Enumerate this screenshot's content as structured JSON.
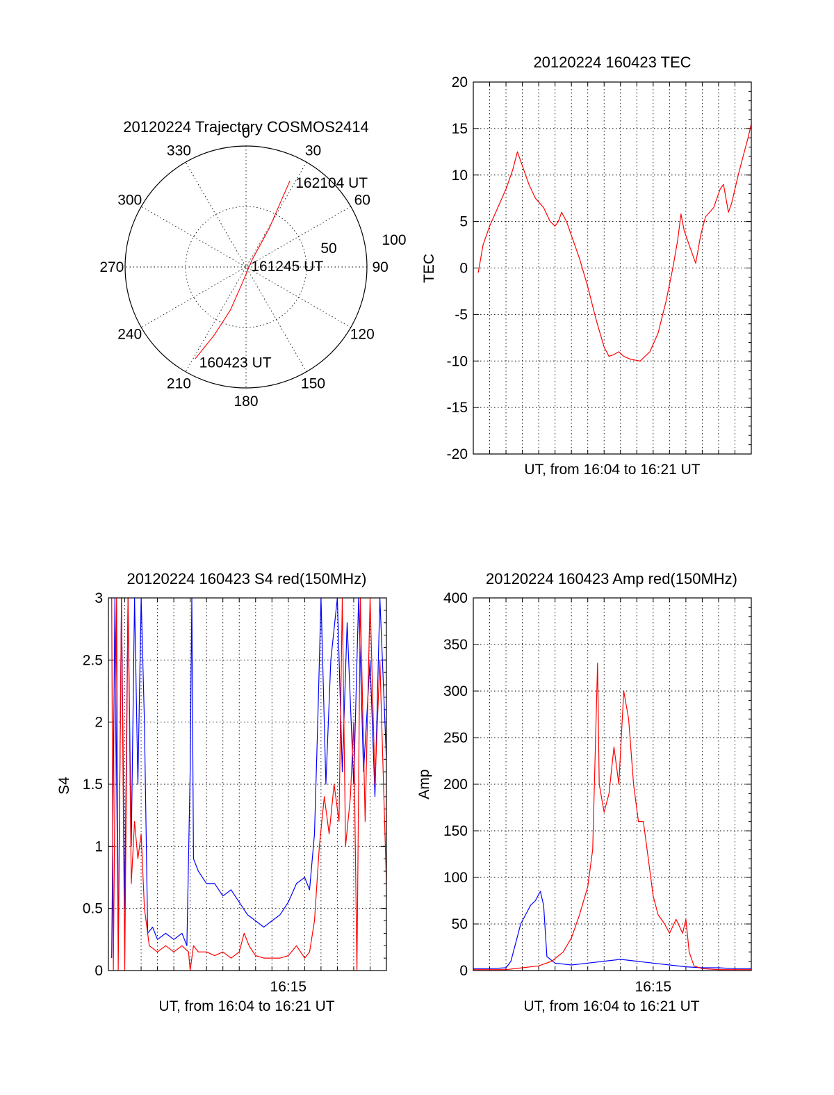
{
  "colors": {
    "red": "#ff0000",
    "blue": "#0000ff",
    "axis": "#000000"
  },
  "chart_data": [
    {
      "id": "trajectory",
      "type": "polar",
      "title": "20120224 Trajectory COSMOS2414",
      "azimuth_labels": [
        "0",
        "30",
        "60",
        "90",
        "120",
        "150",
        "180",
        "210",
        "240",
        "270",
        "300",
        "330"
      ],
      "radial_labels": [
        "50",
        "100"
      ],
      "radial_range": [
        0,
        100
      ],
      "grid": true,
      "series": [
        {
          "color": "red",
          "points": [
            [
              209,
              87
            ],
            [
              205,
              62
            ],
            [
              200,
              38
            ],
            [
              194,
              15
            ],
            [
              40,
              8
            ],
            [
              31,
              37
            ],
            [
              28,
              62
            ],
            [
              27,
              80
            ]
          ]
        }
      ],
      "annotations": [
        {
          "text": "162104 UT",
          "at": [
            27,
            80
          ]
        },
        {
          "text": "161245 UT",
          "at": [
            90,
            3
          ]
        },
        {
          "text": "160423 UT",
          "at": [
            209,
            87
          ]
        }
      ]
    },
    {
      "id": "tec",
      "type": "line",
      "title": "20120224 160423 TEC",
      "xlabel": "UT, from 16:04 to 16:21 UT",
      "ylabel": "TEC",
      "xlim": [
        0,
        17
      ],
      "ylim": [
        -20,
        20
      ],
      "yticks": [
        "-20",
        "-15",
        "-10",
        "-5",
        "0",
        "5",
        "10",
        "15",
        "20"
      ],
      "xticklabels": [],
      "grid": true,
      "series": [
        {
          "color": "red",
          "points": [
            [
              0.3,
              -0.5
            ],
            [
              0.6,
              2.5
            ],
            [
              1.0,
              4.5
            ],
            [
              1.5,
              6.5
            ],
            [
              2.0,
              8.5
            ],
            [
              2.4,
              10.5
            ],
            [
              2.7,
              12.5
            ],
            [
              3.0,
              11
            ],
            [
              3.4,
              9
            ],
            [
              3.8,
              7.5
            ],
            [
              4.3,
              6.5
            ],
            [
              4.7,
              5
            ],
            [
              5.0,
              4.5
            ],
            [
              5.2,
              5
            ],
            [
              5.4,
              6
            ],
            [
              5.7,
              5
            ],
            [
              6.0,
              3.5
            ],
            [
              6.5,
              1
            ],
            [
              7.0,
              -2
            ],
            [
              7.5,
              -5.5
            ],
            [
              8.0,
              -8.5
            ],
            [
              8.3,
              -9.5
            ],
            [
              8.6,
              -9.3
            ],
            [
              8.9,
              -9
            ],
            [
              9.2,
              -9.5
            ],
            [
              9.6,
              -9.8
            ],
            [
              10.2,
              -10
            ],
            [
              10.8,
              -9
            ],
            [
              11.3,
              -7
            ],
            [
              11.8,
              -3.5
            ],
            [
              12.2,
              0
            ],
            [
              12.5,
              3
            ],
            [
              12.7,
              5.8
            ],
            [
              12.9,
              4
            ],
            [
              13.1,
              3
            ],
            [
              13.3,
              2
            ],
            [
              13.6,
              0.5
            ],
            [
              13.9,
              3.5
            ],
            [
              14.2,
              5.5
            ],
            [
              14.7,
              6.5
            ],
            [
              15.1,
              8.5
            ],
            [
              15.3,
              9
            ],
            [
              15.6,
              6
            ],
            [
              15.8,
              7
            ],
            [
              16.2,
              10
            ],
            [
              16.5,
              12
            ],
            [
              16.8,
              14
            ],
            [
              17.0,
              15.5
            ]
          ]
        }
      ]
    },
    {
      "id": "s4",
      "type": "line",
      "title": "20120224 160423 S4 red(150MHz)",
      "xlabel": "UT, from 16:04 to 16:21 UT",
      "ylabel": "S4",
      "xlim": [
        0,
        17
      ],
      "ylim": [
        0,
        3
      ],
      "yticks": [
        "0",
        "0.5",
        "1",
        "1.5",
        "2",
        "2.5",
        "3"
      ],
      "xticklabels": [
        {
          "x": 11,
          "label": "16:15"
        }
      ],
      "grid": true,
      "series": [
        {
          "color": "blue",
          "points": [
            [
              0.2,
              0.1
            ],
            [
              0.4,
              3
            ],
            [
              0.6,
              0.2
            ],
            [
              0.8,
              3
            ],
            [
              1.0,
              0.5
            ],
            [
              1.2,
              3
            ],
            [
              1.4,
              1
            ],
            [
              1.6,
              3
            ],
            [
              1.8,
              1.5
            ],
            [
              2.0,
              3
            ],
            [
              2.2,
              2
            ],
            [
              2.4,
              0.3
            ],
            [
              2.7,
              0.35
            ],
            [
              3.0,
              0.25
            ],
            [
              3.5,
              0.3
            ],
            [
              4.0,
              0.25
            ],
            [
              4.5,
              0.3
            ],
            [
              4.8,
              0.2
            ],
            [
              5.0,
              1.6
            ],
            [
              5.1,
              3
            ],
            [
              5.2,
              0.9
            ],
            [
              5.5,
              0.8
            ],
            [
              6.0,
              0.7
            ],
            [
              6.5,
              0.7
            ],
            [
              7.0,
              0.6
            ],
            [
              7.5,
              0.65
            ],
            [
              8.0,
              0.55
            ],
            [
              8.5,
              0.45
            ],
            [
              9.0,
              0.4
            ],
            [
              9.5,
              0.35
            ],
            [
              10.0,
              0.4
            ],
            [
              10.5,
              0.45
            ],
            [
              11.0,
              0.55
            ],
            [
              11.5,
              0.7
            ],
            [
              12.0,
              0.75
            ],
            [
              12.3,
              0.65
            ],
            [
              12.6,
              1.1
            ],
            [
              12.8,
              2
            ],
            [
              13.0,
              3
            ],
            [
              13.3,
              1.5
            ],
            [
              13.6,
              2.5
            ],
            [
              14.0,
              3
            ],
            [
              14.3,
              1.6
            ],
            [
              14.6,
              2.8
            ],
            [
              15.0,
              1.5
            ],
            [
              15.3,
              3
            ],
            [
              15.6,
              1.6
            ],
            [
              16.0,
              2.5
            ],
            [
              16.3,
              1.4
            ],
            [
              16.6,
              3
            ],
            [
              17.0,
              1.7
            ]
          ]
        },
        {
          "color": "red",
          "points": [
            [
              0.2,
              3
            ],
            [
              0.3,
              0
            ],
            [
              0.5,
              3
            ],
            [
              0.6,
              0
            ],
            [
              0.8,
              3
            ],
            [
              1.0,
              0
            ],
            [
              1.2,
              3
            ],
            [
              1.4,
              0.7
            ],
            [
              1.6,
              1.2
            ],
            [
              1.8,
              0.9
            ],
            [
              2.0,
              1.1
            ],
            [
              2.2,
              0.5
            ],
            [
              2.5,
              0.2
            ],
            [
              3.0,
              0.15
            ],
            [
              3.5,
              0.2
            ],
            [
              4.0,
              0.15
            ],
            [
              4.5,
              0.2
            ],
            [
              4.9,
              0.15
            ],
            [
              5.0,
              0
            ],
            [
              5.2,
              0.2
            ],
            [
              5.5,
              0.15
            ],
            [
              6.0,
              0.15
            ],
            [
              6.5,
              0.12
            ],
            [
              7.0,
              0.15
            ],
            [
              7.5,
              0.1
            ],
            [
              8.0,
              0.15
            ],
            [
              8.3,
              0.3
            ],
            [
              8.6,
              0.2
            ],
            [
              9.0,
              0.12
            ],
            [
              9.5,
              0.1
            ],
            [
              10.0,
              0.1
            ],
            [
              10.5,
              0.1
            ],
            [
              11.0,
              0.12
            ],
            [
              11.5,
              0.2
            ],
            [
              12.0,
              0.1
            ],
            [
              12.3,
              0.15
            ],
            [
              12.6,
              0.4
            ],
            [
              12.9,
              1
            ],
            [
              13.2,
              1.4
            ],
            [
              13.5,
              1.1
            ],
            [
              13.8,
              1.5
            ],
            [
              14.1,
              1.2
            ],
            [
              14.3,
              3
            ],
            [
              14.5,
              1
            ],
            [
              14.8,
              1.4
            ],
            [
              15.0,
              2
            ],
            [
              15.2,
              0
            ],
            [
              15.4,
              3
            ],
            [
              15.7,
              1.2
            ],
            [
              16.0,
              3
            ],
            [
              16.3,
              1.5
            ],
            [
              16.6,
              2.5
            ],
            [
              17.0,
              0.7
            ]
          ]
        }
      ]
    },
    {
      "id": "amp",
      "type": "line",
      "title": "20120224 160423 Amp red(150MHz)",
      "xlabel": "UT, from 16:04 to 16:21 UT",
      "ylabel": "Amp",
      "xlim": [
        0,
        17
      ],
      "ylim": [
        0,
        400
      ],
      "yticks": [
        "0",
        "50",
        "100",
        "150",
        "200",
        "250",
        "300",
        "350",
        "400"
      ],
      "xticklabels": [
        {
          "x": 11,
          "label": "16:15"
        }
      ],
      "grid": true,
      "series": [
        {
          "color": "blue",
          "points": [
            [
              0,
              2
            ],
            [
              1.0,
              2
            ],
            [
              2.0,
              3
            ],
            [
              2.3,
              10
            ],
            [
              2.6,
              30
            ],
            [
              2.9,
              50
            ],
            [
              3.2,
              60
            ],
            [
              3.5,
              70
            ],
            [
              3.8,
              75
            ],
            [
              4.1,
              85
            ],
            [
              4.3,
              70
            ],
            [
              4.5,
              15
            ],
            [
              5.0,
              8
            ],
            [
              6.0,
              6
            ],
            [
              7.0,
              8
            ],
            [
              8.0,
              10
            ],
            [
              9.0,
              12
            ],
            [
              10.0,
              10
            ],
            [
              11.0,
              8
            ],
            [
              12.0,
              6
            ],
            [
              13.0,
              4
            ],
            [
              14.0,
              3
            ],
            [
              15.0,
              3
            ],
            [
              16.0,
              2
            ],
            [
              17.0,
              2
            ]
          ]
        },
        {
          "color": "red",
          "points": [
            [
              0,
              1
            ],
            [
              2.0,
              1
            ],
            [
              3.0,
              3
            ],
            [
              4.0,
              5
            ],
            [
              4.8,
              10
            ],
            [
              5.5,
              20
            ],
            [
              6.0,
              35
            ],
            [
              6.5,
              60
            ],
            [
              7.0,
              90
            ],
            [
              7.3,
              130
            ],
            [
              7.6,
              330
            ],
            [
              7.7,
              200
            ],
            [
              8.0,
              170
            ],
            [
              8.3,
              190
            ],
            [
              8.6,
              240
            ],
            [
              8.9,
              200
            ],
            [
              9.2,
              300
            ],
            [
              9.5,
              270
            ],
            [
              9.8,
              200
            ],
            [
              10.1,
              160
            ],
            [
              10.4,
              160
            ],
            [
              10.7,
              120
            ],
            [
              11.0,
              80
            ],
            [
              11.3,
              60
            ],
            [
              11.7,
              50
            ],
            [
              12.0,
              40
            ],
            [
              12.4,
              55
            ],
            [
              12.8,
              40
            ],
            [
              13.0,
              55
            ],
            [
              13.2,
              20
            ],
            [
              13.5,
              5
            ],
            [
              14.0,
              2
            ],
            [
              15.0,
              1
            ],
            [
              17.0,
              1
            ]
          ]
        }
      ]
    }
  ]
}
